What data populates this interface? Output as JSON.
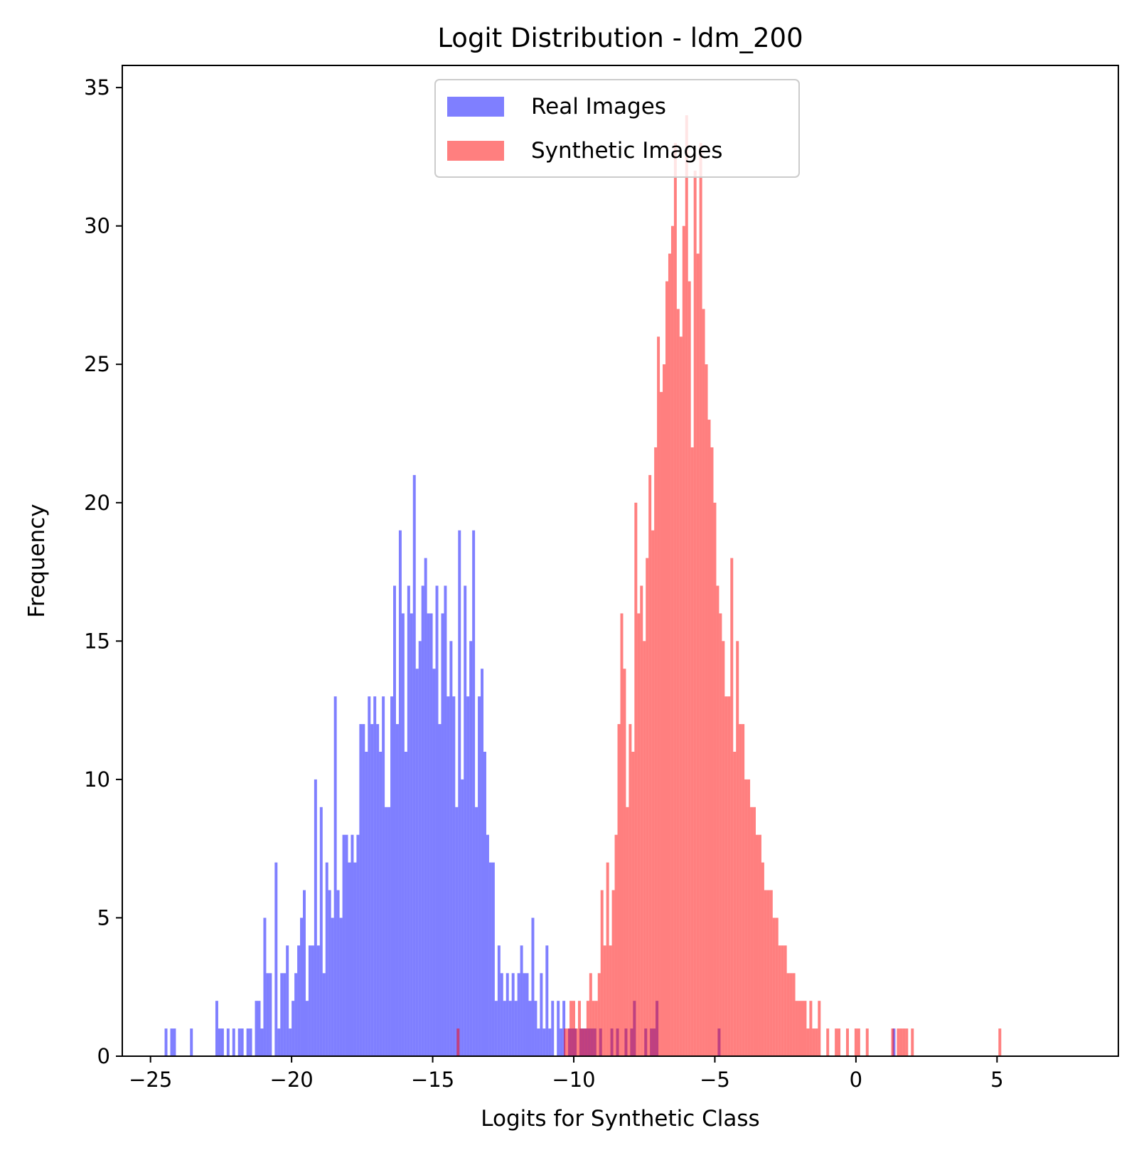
{
  "chart_data": {
    "type": "bar",
    "title": "Logit Distribution - ldm_200",
    "xlabel": "Logits for Synthetic Class",
    "ylabel": "Frequency",
    "xlim": [
      -26,
      9.3
    ],
    "ylim": [
      0,
      35.8
    ],
    "xticks": [
      {
        "value": -25,
        "label": "−25"
      },
      {
        "value": -20,
        "label": "−20"
      },
      {
        "value": -15,
        "label": "−15"
      },
      {
        "value": -10,
        "label": "−10"
      },
      {
        "value": -5,
        "label": "−5"
      },
      {
        "value": 0,
        "label": "0"
      },
      {
        "value": 5,
        "label": "5"
      }
    ],
    "yticks": [
      {
        "value": 0,
        "label": "0"
      },
      {
        "value": 5,
        "label": "5"
      },
      {
        "value": 10,
        "label": "10"
      },
      {
        "value": 15,
        "label": "15"
      },
      {
        "value": 20,
        "label": "20"
      },
      {
        "value": 25,
        "label": "25"
      },
      {
        "value": 30,
        "label": "30"
      },
      {
        "value": 35,
        "label": "35"
      }
    ],
    "grid": false,
    "legend_position": "upper center",
    "series": [
      {
        "name": "Real Images",
        "color": "#0000ff",
        "opacity": 0.5,
        "bin_start": -24.5,
        "bin_width": 0.1,
        "counts": [
          1,
          0,
          1,
          1,
          0,
          0,
          0,
          0,
          0,
          1,
          0,
          0,
          0,
          0,
          0,
          0,
          0,
          0,
          2,
          1,
          1,
          0,
          1,
          0,
          1,
          0,
          1,
          1,
          0,
          1,
          1,
          0,
          2,
          2,
          1,
          5,
          3,
          3,
          0,
          7,
          1,
          3,
          3,
          4,
          1,
          2,
          3,
          4,
          5,
          6,
          2,
          4,
          4,
          10,
          4,
          9,
          3,
          7,
          6,
          5,
          13,
          6,
          5,
          8,
          8,
          7,
          8,
          7,
          8,
          12,
          12,
          11,
          13,
          12,
          13,
          12,
          11,
          13,
          9,
          9,
          13,
          17,
          12,
          19,
          16,
          11,
          17,
          16,
          21,
          14,
          15,
          17,
          18,
          16,
          16,
          14,
          17,
          12,
          16,
          17,
          13,
          15,
          13,
          9,
          19,
          10,
          17,
          13,
          15,
          19,
          9,
          13,
          14,
          11,
          8,
          7,
          7,
          2,
          4,
          3,
          2,
          3,
          2,
          3,
          2,
          3,
          4,
          3,
          3,
          2,
          5,
          2,
          1,
          3,
          1,
          4,
          1,
          2,
          0,
          2,
          1,
          2,
          0,
          1,
          1,
          1,
          0,
          1,
          1,
          1,
          1,
          1,
          1,
          0,
          1,
          0,
          0,
          0,
          1,
          0,
          1,
          0,
          0,
          1,
          0,
          1,
          2,
          0,
          0,
          0,
          1,
          0,
          1,
          1,
          2,
          0,
          0,
          0,
          0,
          0,
          0,
          0,
          0,
          0,
          0,
          0,
          0,
          0,
          0,
          0,
          0,
          0,
          0,
          0,
          0,
          0,
          1,
          0,
          0,
          0,
          0,
          0,
          0,
          0,
          0,
          0,
          0,
          0,
          0,
          0,
          0,
          0,
          0,
          0,
          0,
          0,
          0,
          0,
          0,
          0,
          0,
          0,
          0,
          0,
          0,
          0,
          0,
          0,
          0,
          0,
          0,
          0,
          0,
          0,
          0,
          0,
          0,
          0,
          0,
          0,
          0,
          0,
          0,
          0,
          0,
          0,
          0,
          0,
          0,
          0,
          0,
          0,
          0,
          0,
          0,
          0,
          0,
          0,
          1
        ]
      },
      {
        "name": "Synthetic Images",
        "color": "#ff0000",
        "opacity": 0.5,
        "bin_start": -14.15,
        "bin_width": 0.1,
        "counts": [
          1,
          0,
          0,
          0,
          0,
          0,
          0,
          0,
          0,
          0,
          0,
          0,
          0,
          0,
          0,
          0,
          0,
          0,
          0,
          0,
          0,
          0,
          0,
          0,
          0,
          0,
          0,
          0,
          0,
          0,
          0,
          0,
          0,
          0,
          0,
          0,
          0,
          0,
          1,
          1,
          2,
          2,
          1,
          2,
          1,
          1,
          2,
          3,
          2,
          2,
          3,
          6,
          4,
          7,
          4,
          6,
          8,
          12,
          16,
          14,
          9,
          12,
          11,
          20,
          16,
          17,
          15,
          18,
          21,
          19,
          22,
          26,
          24,
          25,
          28,
          29,
          30,
          33,
          27,
          26,
          30,
          34,
          28,
          22,
          32,
          29,
          33,
          27,
          25,
          23,
          22,
          20,
          17,
          16,
          15,
          13,
          13,
          18,
          11,
          15,
          12,
          12,
          10,
          10,
          9,
          9,
          8,
          8,
          7,
          6,
          6,
          6,
          5,
          5,
          4,
          4,
          4,
          3,
          3,
          3,
          2,
          2,
          2,
          2,
          1,
          2,
          1,
          1,
          2,
          0,
          0,
          1,
          0,
          0,
          1,
          1,
          0,
          0,
          1,
          0,
          0,
          1,
          1,
          0,
          0,
          1,
          0,
          0,
          0,
          0,
          0,
          0,
          0,
          0,
          1,
          0,
          1,
          1,
          1,
          1,
          0,
          1,
          0,
          0,
          0,
          0,
          0,
          0,
          0,
          0,
          0,
          0,
          0,
          0,
          0,
          0,
          0,
          0,
          0,
          0,
          0,
          0,
          0,
          0,
          0,
          0,
          0,
          0,
          0,
          0,
          0,
          0,
          1
        ]
      }
    ]
  }
}
